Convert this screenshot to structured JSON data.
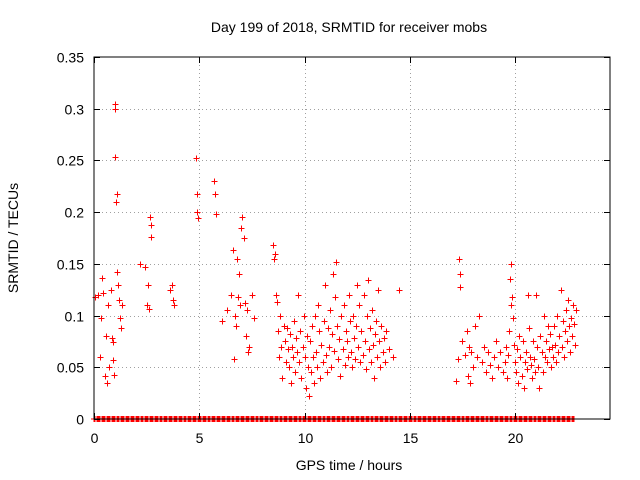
{
  "chart_data": {
    "type": "scatter",
    "title": "Day 199 of 2018, SRMTID for receiver mobs",
    "xlabel": "GPS time / hours",
    "ylabel": "SRMTID / TECUs",
    "xlim": [
      0,
      24.5
    ],
    "ylim": [
      0,
      0.35
    ],
    "xticks": [
      0,
      5,
      10,
      15,
      20
    ],
    "xtick_labels": [
      "0",
      "5",
      "10",
      "15",
      "20"
    ],
    "yticks": [
      0,
      0.05,
      0.1,
      0.15,
      0.2,
      0.25,
      0.3,
      0.35
    ],
    "ytick_labels": [
      "0",
      "0.05",
      "0.1",
      "0.15",
      "0.2",
      "0.25",
      "0.3",
      "0.35"
    ],
    "grid": true,
    "marker": "+",
    "series": [
      {
        "name": "SRMTID",
        "color": "#ff0000",
        "points": [
          [
            0.05,
            0.118
          ],
          [
            0.2,
            0.12
          ],
          [
            0.3,
            0.06
          ],
          [
            0.35,
            0.098
          ],
          [
            0.4,
            0.136
          ],
          [
            0.45,
            0.122
          ],
          [
            0.5,
            0.042
          ],
          [
            0.55,
            0.08
          ],
          [
            0.6,
            0.035
          ],
          [
            0.65,
            0.11
          ],
          [
            0.7,
            0.05
          ],
          [
            0.8,
            0.125
          ],
          [
            0.85,
            0.078
          ],
          [
            0.9,
            0.057
          ],
          [
            0.92,
            0.074
          ],
          [
            0.95,
            0.043
          ],
          [
            0.98,
            0.253
          ],
          [
            1.0,
            0.305
          ],
          [
            1.02,
            0.3
          ],
          [
            1.05,
            0.21
          ],
          [
            1.08,
            0.218
          ],
          [
            1.1,
            0.142
          ],
          [
            1.15,
            0.13
          ],
          [
            1.2,
            0.115
          ],
          [
            1.25,
            0.098
          ],
          [
            1.3,
            0.088
          ],
          [
            1.35,
            0.11
          ],
          [
            2.2,
            0.15
          ],
          [
            2.4,
            0.147
          ],
          [
            2.5,
            0.11
          ],
          [
            2.55,
            0.13
          ],
          [
            2.6,
            0.106
          ],
          [
            2.65,
            0.195
          ],
          [
            2.7,
            0.188
          ],
          [
            2.72,
            0.176
          ],
          [
            3.6,
            0.125
          ],
          [
            3.7,
            0.13
          ],
          [
            3.75,
            0.115
          ],
          [
            3.8,
            0.11
          ],
          [
            4.85,
            0.252
          ],
          [
            4.88,
            0.218
          ],
          [
            4.9,
            0.2
          ],
          [
            4.95,
            0.194
          ],
          [
            5.7,
            0.23
          ],
          [
            5.75,
            0.218
          ],
          [
            5.8,
            0.198
          ],
          [
            6.1,
            0.095
          ],
          [
            6.3,
            0.105
          ],
          [
            6.5,
            0.12
          ],
          [
            6.6,
            0.163
          ],
          [
            6.65,
            0.058
          ],
          [
            6.7,
            0.1
          ],
          [
            6.75,
            0.09
          ],
          [
            6.8,
            0.155
          ],
          [
            6.85,
            0.118
          ],
          [
            6.9,
            0.14
          ],
          [
            6.95,
            0.11
          ],
          [
            7.0,
            0.185
          ],
          [
            7.05,
            0.195
          ],
          [
            7.1,
            0.175
          ],
          [
            7.15,
            0.112
          ],
          [
            7.2,
            0.08
          ],
          [
            7.25,
            0.105
          ],
          [
            7.3,
            0.065
          ],
          [
            7.35,
            0.07
          ],
          [
            7.5,
            0.12
          ],
          [
            7.6,
            0.098
          ],
          [
            8.5,
            0.168
          ],
          [
            8.55,
            0.155
          ],
          [
            8.6,
            0.16
          ],
          [
            8.65,
            0.12
          ],
          [
            8.7,
            0.113
          ],
          [
            8.75,
            0.085
          ],
          [
            8.8,
            0.06
          ],
          [
            8.85,
            0.1
          ],
          [
            8.9,
            0.07
          ],
          [
            8.95,
            0.04
          ],
          [
            9.0,
            0.09
          ],
          [
            9.05,
            0.075
          ],
          [
            9.1,
            0.055
          ],
          [
            9.15,
            0.088
          ],
          [
            9.2,
            0.068
          ],
          [
            9.25,
            0.05
          ],
          [
            9.3,
            0.082
          ],
          [
            9.35,
            0.035
          ],
          [
            9.4,
            0.07
          ],
          [
            9.45,
            0.06
          ],
          [
            9.5,
            0.095
          ],
          [
            9.55,
            0.045
          ],
          [
            9.6,
            0.078
          ],
          [
            9.65,
            0.065
          ],
          [
            9.7,
            0.12
          ],
          [
            9.75,
            0.055
          ],
          [
            9.8,
            0.085
          ],
          [
            9.85,
            0.04
          ],
          [
            9.9,
            0.07
          ],
          [
            9.95,
            0.1
          ],
          [
            10.0,
            0.06
          ],
          [
            10.05,
            0.03
          ],
          [
            10.1,
            0.08
          ],
          [
            10.15,
            0.05
          ],
          [
            10.2,
            0.022
          ],
          [
            10.25,
            0.075
          ],
          [
            10.3,
            0.045
          ],
          [
            10.35,
            0.09
          ],
          [
            10.4,
            0.06
          ],
          [
            10.45,
            0.035
          ],
          [
            10.5,
            0.1
          ],
          [
            10.55,
            0.065
          ],
          [
            10.6,
            0.05
          ],
          [
            10.65,
            0.11
          ],
          [
            10.7,
            0.085
          ],
          [
            10.75,
            0.04
          ],
          [
            10.8,
            0.072
          ],
          [
            10.85,
            0.055
          ],
          [
            10.9,
            0.095
          ],
          [
            10.95,
            0.13
          ],
          [
            11.0,
            0.062
          ],
          [
            11.05,
            0.045
          ],
          [
            11.1,
            0.088
          ],
          [
            11.15,
            0.07
          ],
          [
            11.2,
            0.105
          ],
          [
            11.25,
            0.05
          ],
          [
            11.3,
            0.082
          ],
          [
            11.35,
            0.14
          ],
          [
            11.4,
            0.066
          ],
          [
            11.45,
            0.118
          ],
          [
            11.5,
            0.152
          ],
          [
            11.55,
            0.09
          ],
          [
            11.6,
            0.058
          ],
          [
            11.65,
            0.077
          ],
          [
            11.7,
            0.042
          ],
          [
            11.75,
            0.1
          ],
          [
            11.8,
            0.068
          ],
          [
            11.85,
            0.11
          ],
          [
            11.9,
            0.052
          ],
          [
            11.95,
            0.085
          ],
          [
            12.0,
            0.075
          ],
          [
            12.05,
            0.06
          ],
          [
            12.1,
            0.12
          ],
          [
            12.15,
            0.095
          ],
          [
            12.2,
            0.065
          ],
          [
            12.25,
            0.05
          ],
          [
            12.3,
            0.1
          ],
          [
            12.35,
            0.078
          ],
          [
            12.4,
            0.058
          ],
          [
            12.45,
            0.09
          ],
          [
            12.5,
            0.13
          ],
          [
            12.55,
            0.07
          ],
          [
            12.6,
            0.11
          ],
          [
            12.65,
            0.055
          ],
          [
            12.7,
            0.085
          ],
          [
            12.75,
            0.062
          ],
          [
            12.8,
            0.12
          ],
          [
            12.85,
            0.075
          ],
          [
            12.9,
            0.048
          ],
          [
            12.95,
            0.1
          ],
          [
            13.0,
            0.134
          ],
          [
            13.05,
            0.068
          ],
          [
            13.1,
            0.088
          ],
          [
            13.15,
            0.055
          ],
          [
            13.2,
            0.105
          ],
          [
            13.25,
            0.072
          ],
          [
            13.3,
            0.04
          ],
          [
            13.35,
            0.082
          ],
          [
            13.4,
            0.095
          ],
          [
            13.45,
            0.06
          ],
          [
            13.5,
            0.125
          ],
          [
            13.55,
            0.075
          ],
          [
            13.6,
            0.05
          ],
          [
            13.65,
            0.09
          ],
          [
            13.7,
            0.065
          ],
          [
            13.75,
            0.078
          ],
          [
            13.8,
            0.055
          ],
          [
            13.85,
            0.085
          ],
          [
            14.0,
            0.068
          ],
          [
            14.2,
            0.06
          ],
          [
            14.5,
            0.125
          ],
          [
            17.2,
            0.037
          ],
          [
            17.3,
            0.058
          ],
          [
            17.35,
            0.155
          ],
          [
            17.38,
            0.14
          ],
          [
            17.4,
            0.128
          ],
          [
            17.45,
            0.075
          ],
          [
            17.6,
            0.062
          ],
          [
            17.7,
            0.085
          ],
          [
            17.75,
            0.042
          ],
          [
            17.8,
            0.07
          ],
          [
            17.85,
            0.035
          ],
          [
            17.9,
            0.065
          ],
          [
            18.0,
            0.05
          ],
          [
            18.1,
            0.09
          ],
          [
            18.2,
            0.06
          ],
          [
            18.3,
            0.1
          ],
          [
            18.4,
            0.055
          ],
          [
            18.5,
            0.07
          ],
          [
            18.6,
            0.045
          ],
          [
            18.7,
            0.065
          ],
          [
            18.8,
            0.052
          ],
          [
            18.9,
            0.04
          ],
          [
            19.0,
            0.06
          ],
          [
            19.1,
            0.075
          ],
          [
            19.2,
            0.05
          ],
          [
            19.3,
            0.065
          ],
          [
            19.4,
            0.045
          ],
          [
            19.5,
            0.055
          ],
          [
            19.55,
            0.07
          ],
          [
            19.6,
            0.04
          ],
          [
            19.65,
            0.062
          ],
          [
            19.7,
            0.085
          ],
          [
            19.75,
            0.135
          ],
          [
            19.8,
            0.15
          ],
          [
            19.82,
            0.11
          ],
          [
            19.85,
            0.118
          ],
          [
            19.9,
            0.098
          ],
          [
            19.95,
            0.072
          ],
          [
            20.0,
            0.055
          ],
          [
            20.05,
            0.045
          ],
          [
            20.1,
            0.068
          ],
          [
            20.15,
            0.035
          ],
          [
            20.2,
            0.08
          ],
          [
            20.25,
            0.06
          ],
          [
            20.3,
            0.042
          ],
          [
            20.35,
            0.075
          ],
          [
            20.4,
            0.03
          ],
          [
            20.45,
            0.055
          ],
          [
            20.5,
            0.065
          ],
          [
            20.55,
            0.048
          ],
          [
            20.6,
            0.12
          ],
          [
            20.65,
            0.088
          ],
          [
            20.7,
            0.06
          ],
          [
            20.75,
            0.052
          ],
          [
            20.8,
            0.04
          ],
          [
            20.85,
            0.075
          ],
          [
            20.9,
            0.058
          ],
          [
            20.95,
            0.045
          ],
          [
            21.0,
            0.12
          ],
          [
            21.05,
            0.07
          ],
          [
            21.1,
            0.05
          ],
          [
            21.15,
            0.03
          ],
          [
            21.2,
            0.08
          ],
          [
            21.25,
            0.065
          ],
          [
            21.3,
            0.045
          ],
          [
            21.35,
            0.1
          ],
          [
            21.4,
            0.06
          ],
          [
            21.45,
            0.075
          ],
          [
            21.5,
            0.055
          ],
          [
            21.55,
            0.09
          ],
          [
            21.6,
            0.068
          ],
          [
            21.65,
            0.082
          ],
          [
            21.7,
            0.05
          ],
          [
            21.75,
            0.07
          ],
          [
            21.8,
            0.06
          ],
          [
            21.85,
            0.09
          ],
          [
            21.9,
            0.072
          ],
          [
            21.95,
            0.055
          ],
          [
            22.0,
            0.1
          ],
          [
            22.05,
            0.065
          ],
          [
            22.1,
            0.08
          ],
          [
            22.15,
            0.125
          ],
          [
            22.2,
            0.07
          ],
          [
            22.25,
            0.095
          ],
          [
            22.3,
            0.06
          ],
          [
            22.35,
            0.085
          ],
          [
            22.4,
            0.105
          ],
          [
            22.45,
            0.075
          ],
          [
            22.5,
            0.115
          ],
          [
            22.55,
            0.09
          ],
          [
            22.6,
            0.065
          ],
          [
            22.65,
            0.098
          ],
          [
            22.7,
            0.08
          ],
          [
            22.75,
            0.11
          ],
          [
            22.8,
            0.092
          ],
          [
            22.85,
            0.072
          ],
          [
            22.9,
            0.105
          ]
        ],
        "baseline_zero_hours": [
          0,
          22.8
        ]
      }
    ]
  }
}
